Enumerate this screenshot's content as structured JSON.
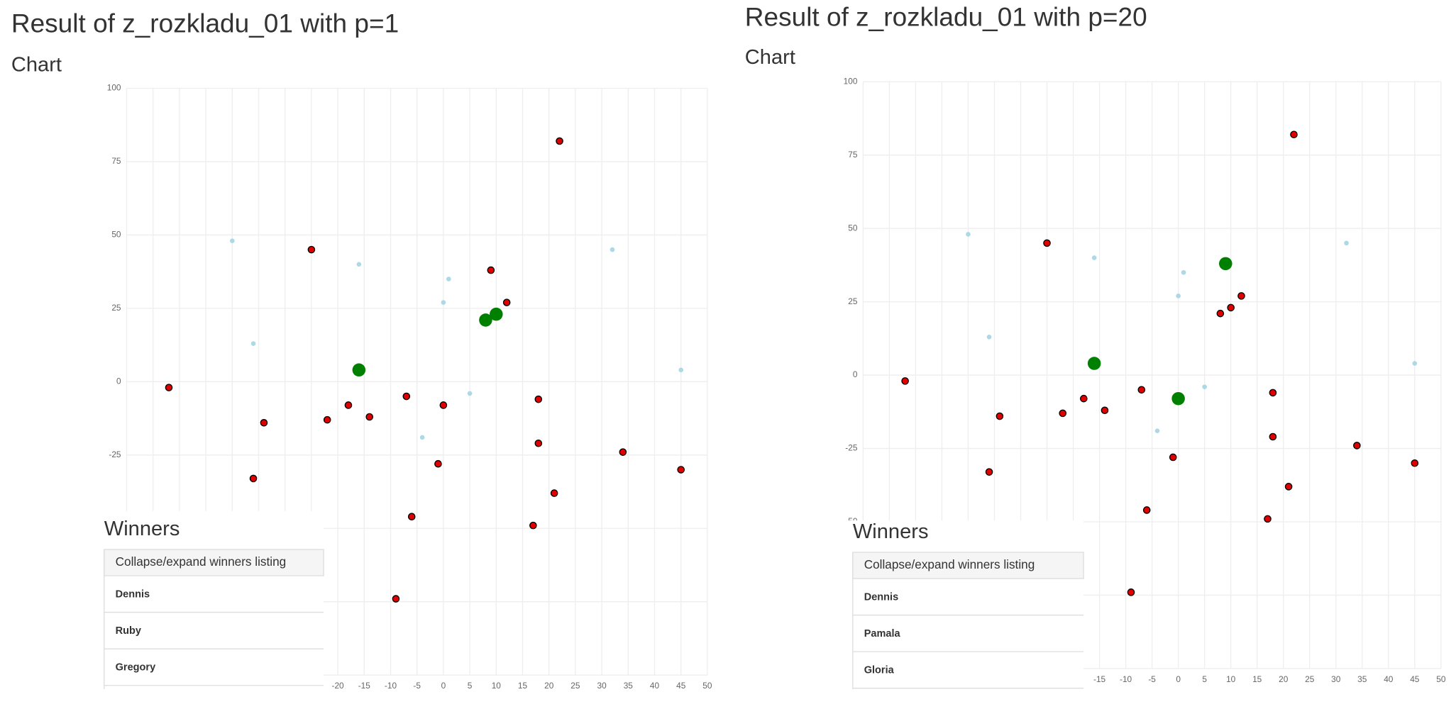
{
  "panels": [
    {
      "title": "Result of z_rozkladu_01 with p=1",
      "chart_heading": "Chart",
      "winners_heading": "Winners",
      "collapse_label": "Collapse/expand winners listing",
      "winners": [
        "Dennis",
        "Ruby",
        "Gregory"
      ]
    },
    {
      "title": "Result of z_rozkladu_01 with p=20",
      "chart_heading": "Chart",
      "winners_heading": "Winners",
      "collapse_label": "Collapse/expand winners listing",
      "winners": [
        "Dennis",
        "Pamala",
        "Gloria"
      ]
    }
  ],
  "chart_data": [
    {
      "type": "scatter",
      "xlim": [
        -60,
        50
      ],
      "ylim": [
        -100,
        100
      ],
      "xticks": [
        -60,
        -55,
        -50,
        -45,
        -40,
        -35,
        -30,
        -25,
        -20,
        -15,
        -10,
        -5,
        0,
        5,
        10,
        15,
        20,
        25,
        30,
        35,
        40,
        45,
        50
      ],
      "yticks": [
        -100,
        -75,
        -50,
        -25,
        0,
        25,
        50,
        75,
        100
      ],
      "grid": true,
      "series": [
        {
          "color": "#add8e6",
          "x": [
            -40,
            -36,
            -16,
            0,
            1,
            5,
            -4,
            32,
            45
          ],
          "values": [
            48,
            13,
            40,
            27,
            35,
            -4,
            -19,
            45,
            4
          ]
        },
        {
          "color": "#e00000",
          "x": [
            -52,
            -36,
            -34,
            -25,
            -22,
            -18,
            -14,
            -7,
            -6,
            -9,
            -1,
            0,
            9,
            12,
            18,
            18,
            17,
            21,
            22,
            34,
            45
          ],
          "values": [
            -2,
            -33,
            -14,
            45,
            -13,
            -8,
            -12,
            -5,
            -46,
            -74,
            -28,
            -8,
            38,
            27,
            -6,
            -21,
            -49,
            -38,
            82,
            -24,
            -30
          ]
        },
        {
          "color": "#008000",
          "x": [
            -16,
            8,
            10
          ],
          "values": [
            4,
            21,
            23
          ]
        }
      ]
    },
    {
      "type": "scatter",
      "xlim": [
        -60,
        50
      ],
      "ylim": [
        -100,
        100
      ],
      "xticks": [
        -60,
        -55,
        -50,
        -45,
        -40,
        -35,
        -30,
        -25,
        -20,
        -15,
        -10,
        -5,
        0,
        5,
        10,
        15,
        20,
        25,
        30,
        35,
        40,
        45,
        50
      ],
      "yticks": [
        -100,
        -75,
        -50,
        -25,
        0,
        25,
        50,
        75,
        100
      ],
      "grid": true,
      "series": [
        {
          "color": "#add8e6",
          "x": [
            -40,
            -36,
            -16,
            0,
            1,
            5,
            -4,
            32,
            45
          ],
          "values": [
            48,
            13,
            40,
            27,
            35,
            -4,
            -19,
            45,
            4
          ]
        },
        {
          "color": "#e00000",
          "x": [
            -52,
            -36,
            -34,
            -25,
            -22,
            -18,
            -14,
            -7,
            -6,
            -9,
            -1,
            8,
            10,
            12,
            18,
            18,
            17,
            21,
            22,
            34,
            45
          ],
          "values": [
            -2,
            -33,
            -14,
            45,
            -13,
            -8,
            -12,
            -5,
            -46,
            -74,
            -28,
            21,
            23,
            27,
            -6,
            -21,
            -49,
            -38,
            82,
            -24,
            -30
          ]
        },
        {
          "color": "#008000",
          "x": [
            -16,
            9,
            0
          ],
          "values": [
            4,
            38,
            -8
          ]
        }
      ]
    }
  ]
}
